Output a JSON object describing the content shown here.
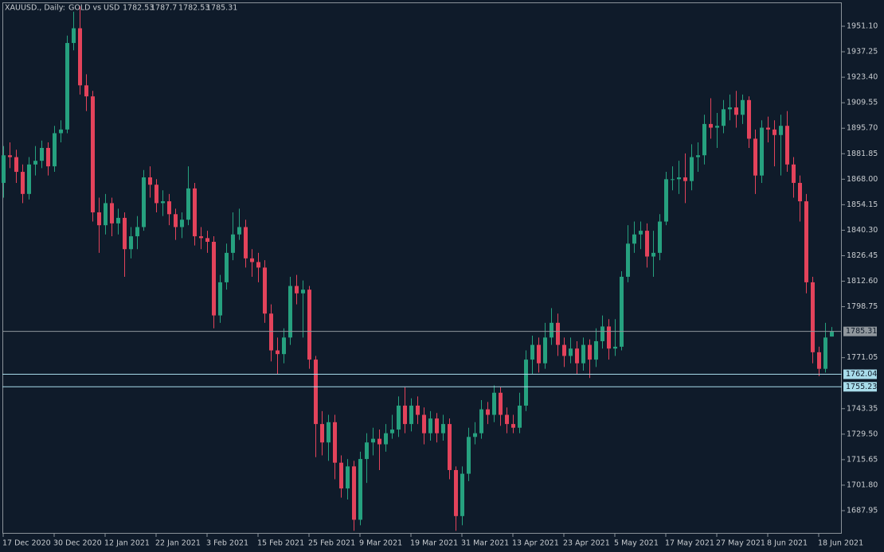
{
  "chart_data": {
    "type": "candlestick",
    "symbol": "XAUUSD., Daily:",
    "description": "GOLD vs USD",
    "up_color": "#26a17f",
    "down_color": "#e3435b",
    "level_color": "#a8dcea",
    "current_color": "#8f969c",
    "ylim": [
      1675.42,
      1964.06
    ],
    "yticks": [
      {
        "value": 1951.1,
        "label": "1951.10"
      },
      {
        "value": 1937.25,
        "label": "1937.25"
      },
      {
        "value": 1923.4,
        "label": "1923.40"
      },
      {
        "value": 1909.55,
        "label": "1909.55"
      },
      {
        "value": 1895.7,
        "label": "1895.70"
      },
      {
        "value": 1881.85,
        "label": "1881.85"
      },
      {
        "value": 1868.0,
        "label": "1868.00"
      },
      {
        "value": 1854.15,
        "label": "1854.15"
      },
      {
        "value": 1840.3,
        "label": "1840.30"
      },
      {
        "value": 1826.45,
        "label": "1826.45"
      },
      {
        "value": 1812.6,
        "label": "1812.60"
      },
      {
        "value": 1798.75,
        "label": "1798.75"
      },
      {
        "value": 1771.05,
        "label": "1771.05"
      },
      {
        "value": 1743.35,
        "label": "1743.35"
      },
      {
        "value": 1729.5,
        "label": "1729.50"
      },
      {
        "value": 1715.65,
        "label": "1715.65"
      },
      {
        "value": 1701.8,
        "label": "1701.80"
      },
      {
        "value": 1687.95,
        "label": "1687.95"
      }
    ],
    "levels": [
      1762.04,
      1755.23
    ],
    "categories": [
      "17 Dec 2020",
      null,
      null,
      null,
      null,
      null,
      null,
      null,
      "30 Dec 2020",
      null,
      null,
      null,
      null,
      null,
      null,
      null,
      "12 Jan 2021",
      null,
      null,
      null,
      null,
      null,
      null,
      null,
      "22 Jan 2021",
      null,
      null,
      null,
      null,
      null,
      null,
      null,
      "3 Feb 2021",
      null,
      null,
      null,
      null,
      null,
      null,
      null,
      "15 Feb 2021",
      null,
      null,
      null,
      null,
      null,
      null,
      null,
      "25 Feb 2021",
      null,
      null,
      null,
      null,
      null,
      null,
      null,
      "9 Mar 2021",
      null,
      null,
      null,
      null,
      null,
      null,
      null,
      "19 Mar 2021",
      null,
      null,
      null,
      null,
      null,
      null,
      null,
      "31 Mar 2021",
      null,
      null,
      null,
      null,
      null,
      null,
      null,
      "13 Apr 2021",
      null,
      null,
      null,
      null,
      null,
      null,
      null,
      "23 Apr 2021",
      null,
      null,
      null,
      null,
      null,
      null,
      null,
      "5 May 2021",
      null,
      null,
      null,
      null,
      null,
      null,
      null,
      "17 May 2021",
      null,
      null,
      null,
      null,
      null,
      null,
      null,
      "27 May 2021",
      null,
      null,
      null,
      null,
      null,
      null,
      null,
      "8 Jun 2021",
      null,
      null,
      null,
      null,
      null,
      null,
      null,
      "18 Jun 2021",
      null,
      null
    ],
    "open": [
      1866,
      1881,
      1880,
      1872,
      1860,
      1876,
      1878,
      1885,
      1875,
      1893,
      1895,
      1942,
      1950,
      1919,
      1913,
      1850,
      1843,
      1855,
      1844,
      1847,
      1830,
      1837,
      1842,
      1869,
      1865,
      1855,
      1856,
      1849,
      1842,
      1846,
      1863,
      1837,
      1836,
      1834,
      1794,
      1812,
      1828,
      1838,
      1842,
      1825,
      1823,
      1820,
      1795,
      1775,
      1773,
      1782,
      1810,
      1806,
      1808,
      1770,
      1735,
      1725,
      1736,
      1714,
      1700,
      1712,
      1683,
      1716,
      1725,
      1727,
      1724,
      1730,
      1732,
      1745,
      1735,
      1745,
      1740,
      1730,
      1738,
      1730,
      1735,
      1710,
      1685,
      1708,
      1728,
      1730,
      1743,
      1740,
      1752,
      1740,
      1735,
      1733,
      1745,
      1770,
      1778,
      1768,
      1782,
      1790,
      1778,
      1772,
      1776,
      1768,
      1778,
      1770,
      1780,
      1788,
      1776,
      1777,
      1815,
      1833,
      1838,
      1840,
      1826,
      1828,
      1845,
      1868,
      1868,
      1869,
      1867,
      1880,
      1881,
      1898,
      1896,
      1897,
      1906,
      1907,
      1903,
      1911,
      1890,
      1870,
      1896,
      1895,
      1892,
      1897,
      1876,
      1866,
      1856,
      1812,
      1774,
      1765,
      1782.53
    ],
    "high": [
      1886,
      1888,
      1884,
      1876,
      1880,
      1886,
      1889,
      1888,
      1897,
      1900,
      1946,
      1959,
      1962,
      1925,
      1916,
      1858,
      1860,
      1858,
      1852,
      1850,
      1842,
      1848,
      1873,
      1875,
      1868,
      1862,
      1860,
      1852,
      1850,
      1875,
      1866,
      1842,
      1840,
      1837,
      1816,
      1833,
      1850,
      1852,
      1846,
      1830,
      1828,
      1824,
      1800,
      1782,
      1787,
      1815,
      1816,
      1813,
      1810,
      1772,
      1742,
      1740,
      1740,
      1718,
      1716,
      1715,
      1720,
      1730,
      1733,
      1732,
      1735,
      1740,
      1750,
      1755,
      1749,
      1750,
      1744,
      1742,
      1741,
      1740,
      1738,
      1712,
      1712,
      1733,
      1736,
      1748,
      1747,
      1756,
      1755,
      1744,
      1740,
      1752,
      1775,
      1783,
      1782,
      1790,
      1798,
      1795,
      1782,
      1782,
      1780,
      1782,
      1781,
      1787,
      1794,
      1792,
      1792,
      1818,
      1843,
      1845,
      1845,
      1844,
      1840,
      1849,
      1872,
      1875,
      1878,
      1882,
      1887,
      1888,
      1903,
      1912,
      1904,
      1911,
      1914,
      1916,
      1914,
      1913,
      1895,
      1900,
      1902,
      1900,
      1903,
      1905,
      1880,
      1870,
      1860,
      1815,
      1777,
      1790,
      1787.7
    ],
    "low": [
      1858,
      1874,
      1866,
      1855,
      1857,
      1870,
      1874,
      1870,
      1872,
      1888,
      1893,
      1938,
      1914,
      1905,
      1845,
      1828,
      1838,
      1837,
      1838,
      1815,
      1825,
      1830,
      1840,
      1858,
      1850,
      1848,
      1843,
      1835,
      1836,
      1843,
      1832,
      1830,
      1828,
      1787,
      1790,
      1808,
      1824,
      1835,
      1820,
      1815,
      1812,
      1790,
      1769,
      1762,
      1768,
      1778,
      1800,
      1782,
      1765,
      1717,
      1718,
      1715,
      1705,
      1695,
      1694,
      1677,
      1680,
      1703,
      1718,
      1710,
      1720,
      1727,
      1728,
      1730,
      1731,
      1735,
      1724,
      1726,
      1725,
      1726,
      1705,
      1677,
      1680,
      1704,
      1724,
      1727,
      1735,
      1736,
      1734,
      1730,
      1730,
      1730,
      1742,
      1762,
      1763,
      1765,
      1778,
      1772,
      1766,
      1768,
      1762,
      1764,
      1760,
      1766,
      1776,
      1770,
      1772,
      1775,
      1812,
      1828,
      1830,
      1820,
      1815,
      1824,
      1843,
      1862,
      1860,
      1855,
      1862,
      1872,
      1876,
      1890,
      1885,
      1893,
      1900,
      1896,
      1898,
      1885,
      1860,
      1866,
      1888,
      1875,
      1870,
      1872,
      1858,
      1845,
      1806,
      1768,
      1761,
      1763,
      1782.53
    ],
    "close": [
      1881,
      1880,
      1872,
      1860,
      1876,
      1878,
      1885,
      1875,
      1893,
      1895,
      1942,
      1950,
      1919,
      1913,
      1850,
      1843,
      1855,
      1844,
      1847,
      1830,
      1837,
      1842,
      1869,
      1865,
      1855,
      1856,
      1849,
      1842,
      1846,
      1863,
      1837,
      1836,
      1834,
      1794,
      1812,
      1828,
      1838,
      1842,
      1825,
      1823,
      1820,
      1795,
      1775,
      1773,
      1782,
      1810,
      1806,
      1808,
      1770,
      1735,
      1725,
      1736,
      1714,
      1700,
      1712,
      1683,
      1716,
      1725,
      1727,
      1724,
      1730,
      1732,
      1745,
      1735,
      1745,
      1740,
      1730,
      1738,
      1730,
      1735,
      1710,
      1685,
      1708,
      1728,
      1730,
      1743,
      1740,
      1752,
      1740,
      1735,
      1733,
      1745,
      1770,
      1778,
      1768,
      1782,
      1790,
      1778,
      1772,
      1776,
      1768,
      1778,
      1770,
      1780,
      1788,
      1776,
      1777,
      1815,
      1833,
      1838,
      1840,
      1826,
      1828,
      1845,
      1868,
      1868,
      1869,
      1867,
      1880,
      1881,
      1898,
      1896,
      1897,
      1906,
      1907,
      1903,
      1911,
      1890,
      1870,
      1896,
      1895,
      1892,
      1897,
      1876,
      1866,
      1856,
      1812,
      1774,
      1765,
      1782,
      1785.31
    ]
  }
}
